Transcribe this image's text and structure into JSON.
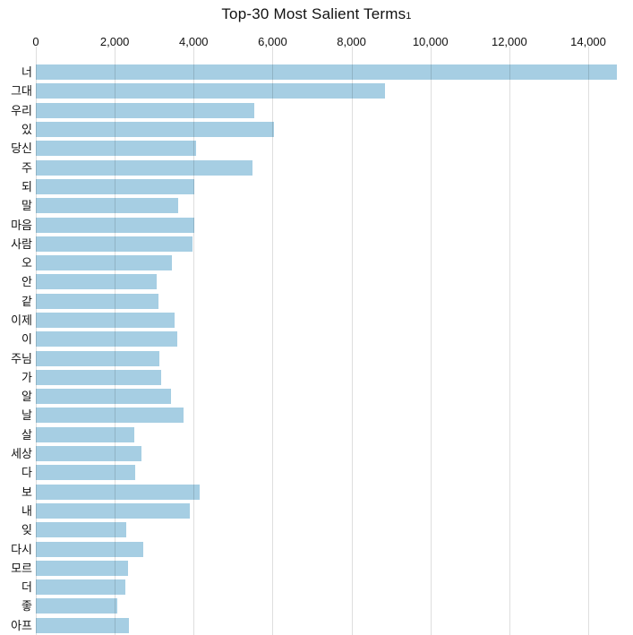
{
  "title": {
    "text": "Top-30 Most Salient Terms",
    "footnote": "1"
  },
  "axis": {
    "position": "top",
    "tick_labels": [
      "0",
      "2,000",
      "4,000",
      "6,000",
      "8,000",
      "10,000",
      "12,000",
      "14,000"
    ],
    "tick_values": [
      0,
      2000,
      4000,
      6000,
      8000,
      10000,
      12000,
      14000
    ]
  },
  "chart_data": {
    "type": "bar",
    "orientation": "horizontal",
    "title": "Top-30 Most Salient Terms1",
    "xlabel": "",
    "ylabel": "",
    "xlim": [
      0,
      14000
    ],
    "grid": "vertical",
    "legend_position": "none",
    "bar_color": "#A6CEE3",
    "categories": [
      "너",
      "그대",
      "우리",
      "있",
      "당신",
      "주",
      "되",
      "말",
      "마음",
      "사람",
      "오",
      "안",
      "같",
      "이제",
      "이",
      "주님",
      "가",
      "알",
      "날",
      "살",
      "세상",
      "다",
      "보",
      "내",
      "잊",
      "다시",
      "모르",
      "더",
      "좋",
      "아프"
    ],
    "values": [
      14720,
      8850,
      5540,
      6040,
      4060,
      5490,
      4020,
      3610,
      4020,
      3970,
      3450,
      3060,
      3110,
      3520,
      3590,
      3130,
      3180,
      3430,
      3740,
      2500,
      2670,
      2520,
      4150,
      3900,
      2290,
      2720,
      2340,
      2270,
      2060,
      2360
    ]
  },
  "layout_colors": {
    "gridline": "#dddddd",
    "text": "#111111",
    "background": "#ffffff"
  }
}
